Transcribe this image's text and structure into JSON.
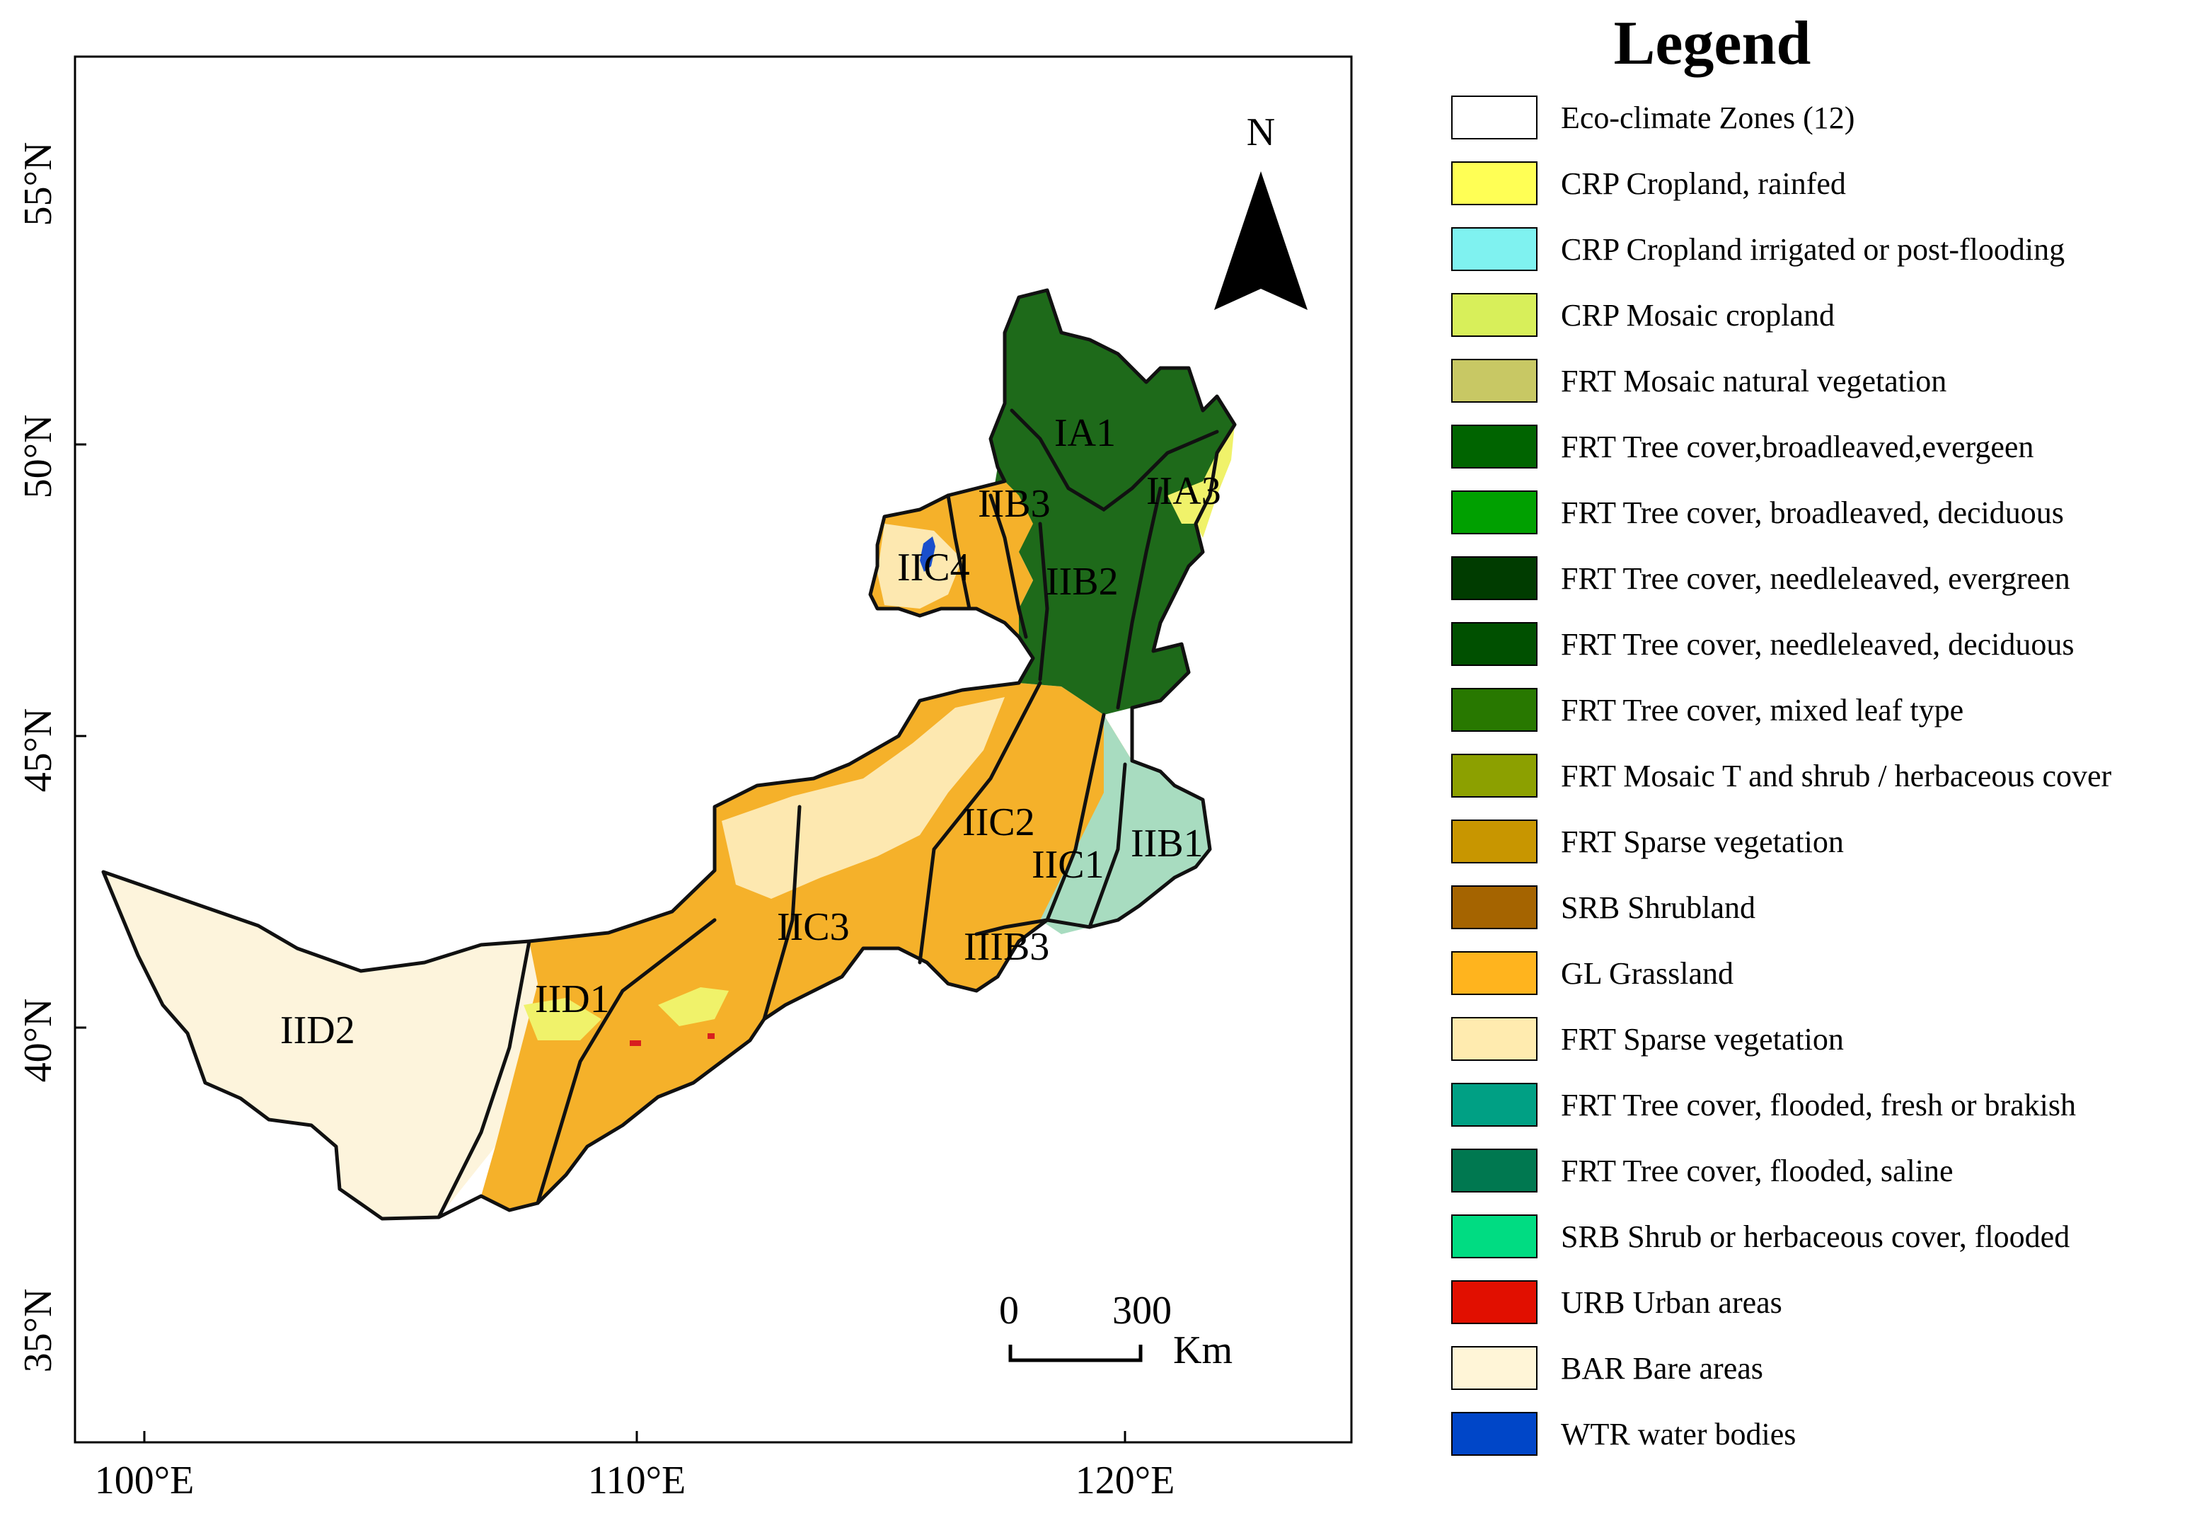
{
  "map": {
    "lat_labels": [
      "55°N",
      "50°N",
      "45°N",
      "40°N",
      "35°N"
    ],
    "lon_labels": [
      "100°E",
      "110°E",
      "120°E"
    ],
    "north_arrow": {
      "label": "N",
      "icon": "north-arrow-icon"
    },
    "scale_bar": {
      "zero": "0",
      "max": "300",
      "unit": "Km"
    },
    "zones": [
      "IA1",
      "IIA3",
      "IIB3",
      "IIC4",
      "IIB2",
      "IIC2",
      "IIB1",
      "IIC1",
      "IIC3",
      "IIIB3",
      "IID1",
      "IID2"
    ],
    "colors": {
      "bare": "#fdf4dc",
      "sparse": "#fde8b0",
      "grassland": "#f5b12a",
      "cropland": "#f0f26a",
      "mosaic": "#d9e86a",
      "irrigated": "#86e2d8",
      "forest_dark": "#1e6a1a",
      "forest_mid": "#2e8a22",
      "water": "#1a4fcc",
      "urban": "#d81f1f",
      "outline": "#111111"
    }
  },
  "legend": {
    "title": "Legend",
    "items": [
      {
        "label": "Eco-climate Zones (12)",
        "color": "#ffffff"
      },
      {
        "label": "CRP Cropland, rainfed",
        "color": "#ffff55"
      },
      {
        "label": "CRP Cropland irrigated or post-flooding",
        "color": "#7ff2f0"
      },
      {
        "label": "CRP Mosaic cropland",
        "color": "#d8ef5a"
      },
      {
        "label": "FRT Mosaic natural vegetation",
        "color": "#c8c864"
      },
      {
        "label": "FRT Tree cover,broadleaved,evergeen",
        "color": "#006400"
      },
      {
        "label": "FRT Tree cover, broadleaved, deciduous",
        "color": "#00a000"
      },
      {
        "label": "FRT Tree cover, needleleaved, evergreen",
        "color": "#003c00"
      },
      {
        "label": "FRT Tree cover, needleleaved, deciduous",
        "color": "#005000"
      },
      {
        "label": "FRT Tree cover, mixed leaf type",
        "color": "#287800"
      },
      {
        "label": "FRT Mosaic T and shrub / herbaceous cover",
        "color": "#8ca000"
      },
      {
        "label": "FRT Sparse vegetation",
        "color": "#c89600"
      },
      {
        "label": "SRB Shrubland",
        "color": "#a56400"
      },
      {
        "label": "GL Grassland",
        "color": "#ffb41e"
      },
      {
        "label": "FRT Sparse vegetation",
        "color": "#ffebaf"
      },
      {
        "label": "FRT Tree cover, flooded, fresh or brakish",
        "color": "#00a084"
      },
      {
        "label": "FRT Tree cover, flooded, saline",
        "color": "#007850"
      },
      {
        "label": "SRB Shrub or herbaceous cover, flooded",
        "color": "#00dc82"
      },
      {
        "label": "URB Urban areas",
        "color": "#e10f00"
      },
      {
        "label": "BAR Bare areas",
        "color": "#fff5d7"
      },
      {
        "label": "WTR water bodies",
        "color": "#0046c8"
      }
    ]
  }
}
